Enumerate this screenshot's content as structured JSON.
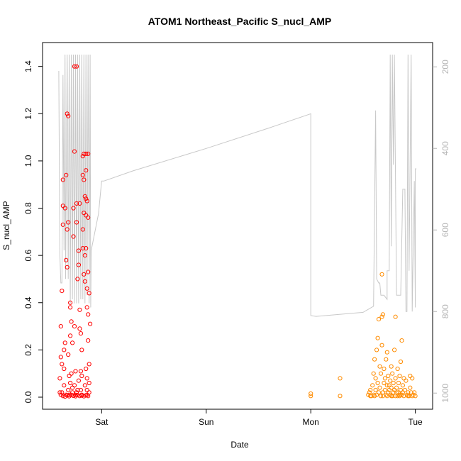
{
  "chart_data": {
    "type": "scatter",
    "title": "ATOM1 Northeast_Pacific S_nucl_AMP",
    "xlabel": "Date",
    "ylabel": "S_nucl_AMP",
    "x_ticks": [
      "Sat",
      "Sun",
      "Mon",
      "Tue"
    ],
    "y_ticks": [
      "0.0",
      "0.2",
      "0.4",
      "0.6",
      "0.8",
      "1.0",
      "1.2",
      "1.4"
    ],
    "y_tick_values": [
      0,
      0.2,
      0.4,
      0.6,
      0.8,
      1.0,
      1.2,
      1.4
    ],
    "ylim": [
      0,
      1.45
    ],
    "xlim_days": [
      -0.45,
      3.05
    ],
    "y2_ticks": [
      "200",
      "400",
      "600",
      "800",
      "1000"
    ],
    "y2_tick_values": [
      200,
      400,
      600,
      800,
      1000
    ],
    "y2lim_reversed": [
      1010,
      170
    ],
    "grid": false,
    "colors": {
      "series_red": "#ff0000",
      "series_orange": "#ff8c00",
      "depth_line": "#c8c8c8",
      "right_axis": "#b5b5b5"
    },
    "series": [
      {
        "color": "#ff0000",
        "points": [
          [
            -0.4,
            0.02
          ],
          [
            -0.4,
            0.08
          ],
          [
            -0.39,
            0.17
          ],
          [
            -0.39,
            0.3
          ],
          [
            -0.38,
            0.02
          ],
          [
            -0.38,
            0.14
          ],
          [
            -0.38,
            0.45
          ],
          [
            -0.37,
            0.92
          ],
          [
            -0.37,
            0.81
          ],
          [
            -0.37,
            0.73
          ],
          [
            -0.36,
            0.2
          ],
          [
            -0.36,
            0.05
          ],
          [
            -0.35,
            0.8
          ],
          [
            -0.35,
            0.23
          ],
          [
            -0.34,
            0.58
          ],
          [
            -0.34,
            0.01
          ],
          [
            -0.34,
            0.94
          ],
          [
            -0.33,
            1.2
          ],
          [
            -0.33,
            0.71
          ],
          [
            -0.33,
            0.55
          ],
          [
            -0.32,
            1.19
          ],
          [
            -0.32,
            0.74
          ],
          [
            -0.32,
            0.18
          ],
          [
            -0.31,
            0.09
          ],
          [
            -0.31,
            0.01
          ],
          [
            -0.3,
            0.4
          ],
          [
            -0.3,
            0.26
          ],
          [
            -0.3,
            0.38
          ],
          [
            -0.29,
            0.32
          ],
          [
            -0.29,
            0.1
          ],
          [
            -0.28,
            0.02
          ],
          [
            -0.28,
            0.23
          ],
          [
            -0.27,
            0.8
          ],
          [
            -0.27,
            0.68
          ],
          [
            -0.26,
            1.4
          ],
          [
            -0.26,
            1.04
          ],
          [
            -0.26,
            0.05
          ],
          [
            -0.25,
            0.11
          ],
          [
            -0.25,
            0.01
          ],
          [
            -0.24,
            1.4
          ],
          [
            -0.24,
            0.82
          ],
          [
            -0.24,
            0.74
          ],
          [
            -0.23,
            0.5
          ],
          [
            -0.23,
            0.03
          ],
          [
            -0.22,
            0.62
          ],
          [
            -0.22,
            0.56
          ],
          [
            -0.21,
            0.29
          ],
          [
            -0.21,
            0.82
          ],
          [
            -0.21,
            0.37
          ],
          [
            -0.2,
            0.27
          ],
          [
            -0.2,
            0.11
          ],
          [
            -0.19,
            0.2
          ],
          [
            -0.19,
            0.01
          ],
          [
            -0.18,
            0.63
          ],
          [
            -0.18,
            0.71
          ],
          [
            -0.18,
            0.94
          ],
          [
            -0.18,
            1.02
          ],
          [
            -0.17,
            0.92
          ],
          [
            -0.17,
            1.03
          ],
          [
            -0.17,
            0.78
          ],
          [
            -0.17,
            0.52
          ],
          [
            -0.16,
            0.6
          ],
          [
            -0.16,
            0.85
          ],
          [
            -0.16,
            0.49
          ],
          [
            -0.15,
            0.84
          ],
          [
            -0.15,
            0.77
          ],
          [
            -0.15,
            0.63
          ],
          [
            -0.15,
            1.03
          ],
          [
            -0.15,
            0.96
          ],
          [
            -0.14,
            0.46
          ],
          [
            -0.14,
            0.83
          ],
          [
            -0.14,
            0.38
          ],
          [
            -0.14,
            0.08
          ],
          [
            -0.14,
            0.01
          ],
          [
            -0.13,
            0.53
          ],
          [
            -0.13,
            0.76
          ],
          [
            -0.13,
            0.35
          ],
          [
            -0.13,
            1.03
          ],
          [
            -0.12,
            0.44
          ],
          [
            -0.12,
            0.14
          ],
          [
            -0.12,
            0.02
          ],
          [
            -0.11,
            0.31
          ],
          [
            -0.39,
            0.01
          ],
          [
            -0.37,
            0.005
          ],
          [
            -0.35,
            0.003
          ],
          [
            -0.33,
            0.008
          ],
          [
            -0.31,
            0.004
          ],
          [
            -0.29,
            0.01
          ],
          [
            -0.27,
            0.006
          ],
          [
            -0.25,
            0.004
          ],
          [
            -0.23,
            0.009
          ],
          [
            -0.21,
            0.005
          ],
          [
            -0.19,
            0.007
          ],
          [
            -0.17,
            0.004
          ],
          [
            -0.15,
            0.008
          ],
          [
            -0.13,
            0.005
          ],
          [
            -0.3,
            0.06
          ],
          [
            -0.22,
            0.07
          ],
          [
            -0.16,
            0.05
          ],
          [
            -0.36,
            0.12
          ],
          [
            -0.28,
            0.04
          ],
          [
            -0.2,
            0.03
          ],
          [
            -0.14,
            0.03
          ],
          [
            -0.32,
            0.03
          ],
          [
            -0.24,
            0.02
          ],
          [
            -0.19,
            0.09
          ],
          [
            -0.15,
            0.12
          ],
          [
            -0.12,
            0.06
          ],
          [
            -0.26,
            0.3
          ],
          [
            -0.13,
            0.24
          ]
        ]
      },
      {
        "color": "#ff8c00",
        "points": [
          [
            2.0,
            0.015
          ],
          [
            2.0,
            0.005
          ],
          [
            2.28,
            0.08
          ],
          [
            2.28,
            0.005
          ],
          [
            2.55,
            0.01
          ],
          [
            2.56,
            0.02
          ],
          [
            2.57,
            0.03
          ],
          [
            2.58,
            0.005
          ],
          [
            2.59,
            0.05
          ],
          [
            2.6,
            0.1
          ],
          [
            2.6,
            0.01
          ],
          [
            2.61,
            0.16
          ],
          [
            2.62,
            0.03
          ],
          [
            2.62,
            0.08
          ],
          [
            2.63,
            0.2
          ],
          [
            2.63,
            0.01
          ],
          [
            2.64,
            0.25
          ],
          [
            2.64,
            0.06
          ],
          [
            2.65,
            0.33
          ],
          [
            2.65,
            0.02
          ],
          [
            2.66,
            0.13
          ],
          [
            2.66,
            0.04
          ],
          [
            2.67,
            0.1
          ],
          [
            2.67,
            0.005
          ],
          [
            2.68,
            0.34
          ],
          [
            2.68,
            0.52
          ],
          [
            2.68,
            0.22
          ],
          [
            2.69,
            0.35
          ],
          [
            2.69,
            0.02
          ],
          [
            2.7,
            0.06
          ],
          [
            2.7,
            0.12
          ],
          [
            2.71,
            0.03
          ],
          [
            2.71,
            0.08
          ],
          [
            2.72,
            0.16
          ],
          [
            2.72,
            0.01
          ],
          [
            2.73,
            0.05
          ],
          [
            2.73,
            0.19
          ],
          [
            2.74,
            0.02
          ],
          [
            2.74,
            0.09
          ],
          [
            2.75,
            0.03
          ],
          [
            2.75,
            0.05
          ],
          [
            2.76,
            0.07
          ],
          [
            2.76,
            0.01
          ],
          [
            2.77,
            0.13
          ],
          [
            2.77,
            0.04
          ],
          [
            2.78,
            0.1
          ],
          [
            2.78,
            0.005
          ],
          [
            2.79,
            0.02
          ],
          [
            2.79,
            0.06
          ],
          [
            2.8,
            0.2
          ],
          [
            2.8,
            0.03
          ],
          [
            2.81,
            0.34
          ],
          [
            2.81,
            0.08
          ],
          [
            2.82,
            0.02
          ],
          [
            2.82,
            0.04
          ],
          [
            2.83,
            0.12
          ],
          [
            2.83,
            0.005
          ],
          [
            2.84,
            0.06
          ],
          [
            2.84,
            0.02
          ],
          [
            2.85,
            0.09
          ],
          [
            2.85,
            0.01
          ],
          [
            2.86,
            0.03
          ],
          [
            2.86,
            0.15
          ],
          [
            2.87,
            0.01
          ],
          [
            2.87,
            0.24
          ],
          [
            2.88,
            0.05
          ],
          [
            2.88,
            0.02
          ],
          [
            2.89,
            0.08
          ],
          [
            2.9,
            0.03
          ],
          [
            2.91,
            0.07
          ],
          [
            2.92,
            0.01
          ],
          [
            2.93,
            0.02
          ],
          [
            2.94,
            0.005
          ],
          [
            2.95,
            0.04
          ],
          [
            2.96,
            0.02
          ],
          [
            2.97,
            0.08
          ],
          [
            2.98,
            0.01
          ],
          [
            2.99,
            0.02
          ],
          [
            3.0,
            0.005
          ],
          [
            2.57,
            0.005
          ],
          [
            2.61,
            0.005
          ],
          [
            2.69,
            0.005
          ],
          [
            2.73,
            0.005
          ],
          [
            2.77,
            0.005
          ],
          [
            2.81,
            0.005
          ],
          [
            2.85,
            0.005
          ],
          [
            2.89,
            0.005
          ],
          [
            2.93,
            0.005
          ],
          [
            2.97,
            0.005
          ],
          [
            2.95,
            0.09
          ]
        ]
      }
    ],
    "depth_line": [
      [
        -0.41,
        210
      ],
      [
        -0.4,
        660
      ],
      [
        -0.39,
        730
      ],
      [
        -0.38,
        730
      ],
      [
        -0.37,
        220
      ],
      [
        -0.36,
        650
      ],
      [
        -0.35,
        170
      ],
      [
        -0.345,
        720
      ],
      [
        -0.33,
        170
      ],
      [
        -0.32,
        720
      ],
      [
        -0.31,
        170
      ],
      [
        -0.3,
        780
      ],
      [
        -0.29,
        170
      ],
      [
        -0.28,
        770
      ],
      [
        -0.27,
        170
      ],
      [
        -0.26,
        780
      ],
      [
        -0.25,
        170
      ],
      [
        -0.24,
        780
      ],
      [
        -0.23,
        170
      ],
      [
        -0.22,
        780
      ],
      [
        -0.21,
        170
      ],
      [
        -0.2,
        770
      ],
      [
        -0.19,
        170
      ],
      [
        -0.18,
        770
      ],
      [
        -0.17,
        170
      ],
      [
        -0.16,
        780
      ],
      [
        -0.15,
        170
      ],
      [
        -0.14,
        760
      ],
      [
        -0.13,
        170
      ],
      [
        -0.12,
        780
      ],
      [
        -0.11,
        170
      ],
      [
        -0.105,
        790
      ],
      [
        -0.1,
        650
      ],
      [
        -0.03,
        560
      ],
      [
        0.0,
        480
      ],
      [
        0.02,
        480
      ],
      [
        0.3,
        455
      ],
      [
        1.0,
        400
      ],
      [
        1.6,
        350
      ],
      [
        2.0,
        315
      ],
      [
        2.0,
        810
      ],
      [
        2.05,
        812
      ],
      [
        2.5,
        802
      ],
      [
        2.6,
        787
      ],
      [
        2.62,
        307
      ],
      [
        2.63,
        720
      ],
      [
        2.65,
        730
      ],
      [
        2.66,
        730
      ],
      [
        2.67,
        760
      ],
      [
        2.7,
        760
      ],
      [
        2.73,
        770
      ],
      [
        2.73,
        700
      ],
      [
        2.75,
        700
      ],
      [
        2.76,
        170
      ],
      [
        2.77,
        640
      ],
      [
        2.78,
        170
      ],
      [
        2.79,
        440
      ],
      [
        2.8,
        170
      ],
      [
        2.82,
        760
      ],
      [
        2.86,
        760
      ],
      [
        2.88,
        500
      ],
      [
        2.9,
        500
      ],
      [
        2.91,
        800
      ],
      [
        2.92,
        800
      ],
      [
        2.93,
        170
      ],
      [
        2.94,
        700
      ],
      [
        2.96,
        170
      ],
      [
        2.97,
        800
      ],
      [
        2.99,
        480
      ],
      [
        3.0,
        790
      ],
      [
        3.0,
        450
      ],
      [
        3.01,
        450
      ]
    ]
  }
}
